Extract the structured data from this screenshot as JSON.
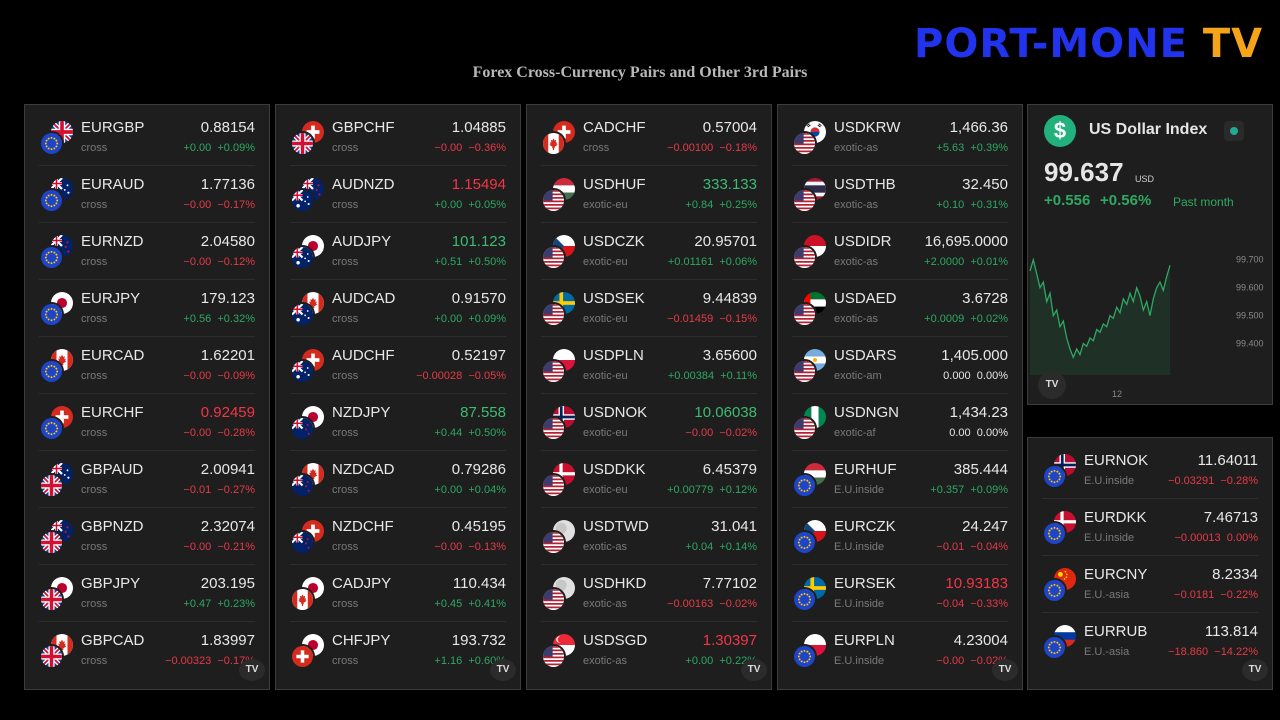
{
  "brand": {
    "part1": "PORT-MONE",
    "part2": "TV"
  },
  "title": "Forex Cross-Currency Pairs and Other 3rd Pairs",
  "tv_mark": "TV",
  "colors": {
    "up": "#2ea863",
    "down": "#e63a47",
    "panel_bg": "#1e1e1e",
    "accent_green": "#22b07d"
  },
  "panels": [
    [
      {
        "symbol": "EURGBP",
        "type": "cross",
        "price": "0.88154",
        "price_dir": "nt",
        "change": "+0.00",
        "pct": "+0.09%",
        "dir": "up",
        "base": "EU",
        "quote": "GB"
      },
      {
        "symbol": "EURAUD",
        "type": "cross",
        "price": "1.77136",
        "price_dir": "nt",
        "change": "−0.00",
        "pct": "−0.17%",
        "dir": "dn",
        "base": "EU",
        "quote": "AU"
      },
      {
        "symbol": "EURNZD",
        "type": "cross",
        "price": "2.04580",
        "price_dir": "nt",
        "change": "−0.00",
        "pct": "−0.12%",
        "dir": "dn",
        "base": "EU",
        "quote": "NZ"
      },
      {
        "symbol": "EURJPY",
        "type": "cross",
        "price": "179.123",
        "price_dir": "nt",
        "change": "+0.56",
        "pct": "+0.32%",
        "dir": "up",
        "base": "EU",
        "quote": "JP"
      },
      {
        "symbol": "EURCAD",
        "type": "cross",
        "price": "1.62201",
        "price_dir": "nt",
        "change": "−0.00",
        "pct": "−0.09%",
        "dir": "dn",
        "base": "EU",
        "quote": "CA"
      },
      {
        "symbol": "EURCHF",
        "type": "cross",
        "price": "0.92459",
        "price_dir": "dn",
        "change": "−0.00",
        "pct": "−0.28%",
        "dir": "dn",
        "base": "EU",
        "quote": "CH"
      },
      {
        "symbol": "GBPAUD",
        "type": "cross",
        "price": "2.00941",
        "price_dir": "nt",
        "change": "−0.01",
        "pct": "−0.27%",
        "dir": "dn",
        "base": "GB",
        "quote": "AU"
      },
      {
        "symbol": "GBPNZD",
        "type": "cross",
        "price": "2.32074",
        "price_dir": "nt",
        "change": "−0.00",
        "pct": "−0.21%",
        "dir": "dn",
        "base": "GB",
        "quote": "NZ"
      },
      {
        "symbol": "GBPJPY",
        "type": "cross",
        "price": "203.195",
        "price_dir": "nt",
        "change": "+0.47",
        "pct": "+0.23%",
        "dir": "up",
        "base": "GB",
        "quote": "JP"
      },
      {
        "symbol": "GBPCAD",
        "type": "cross",
        "price": "1.83997",
        "price_dir": "nt",
        "change": "−0.00323",
        "pct": "−0.17%",
        "dir": "dn",
        "base": "GB",
        "quote": "CA"
      }
    ],
    [
      {
        "symbol": "GBPCHF",
        "type": "cross",
        "price": "1.04885",
        "price_dir": "nt",
        "change": "−0.00",
        "pct": "−0.36%",
        "dir": "dn",
        "base": "GB",
        "quote": "CH"
      },
      {
        "symbol": "AUDNZD",
        "type": "cross",
        "price": "1.15494",
        "price_dir": "dn",
        "change": "+0.00",
        "pct": "+0.05%",
        "dir": "up",
        "base": "AU",
        "quote": "NZ"
      },
      {
        "symbol": "AUDJPY",
        "type": "cross",
        "price": "101.123",
        "price_dir": "up",
        "change": "+0.51",
        "pct": "+0.50%",
        "dir": "up",
        "base": "AU",
        "quote": "JP"
      },
      {
        "symbol": "AUDCAD",
        "type": "cross",
        "price": "0.91570",
        "price_dir": "nt",
        "change": "+0.00",
        "pct": "+0.09%",
        "dir": "up",
        "base": "AU",
        "quote": "CA"
      },
      {
        "symbol": "AUDCHF",
        "type": "cross",
        "price": "0.52197",
        "price_dir": "nt",
        "change": "−0.00028",
        "pct": "−0.05%",
        "dir": "dn",
        "base": "AU",
        "quote": "CH"
      },
      {
        "symbol": "NZDJPY",
        "type": "cross",
        "price": "87.558",
        "price_dir": "up",
        "change": "+0.44",
        "pct": "+0.50%",
        "dir": "up",
        "base": "NZ",
        "quote": "JP"
      },
      {
        "symbol": "NZDCAD",
        "type": "cross",
        "price": "0.79286",
        "price_dir": "nt",
        "change": "+0.00",
        "pct": "+0.04%",
        "dir": "up",
        "base": "NZ",
        "quote": "CA"
      },
      {
        "symbol": "NZDCHF",
        "type": "cross",
        "price": "0.45195",
        "price_dir": "nt",
        "change": "−0.00",
        "pct": "−0.13%",
        "dir": "dn",
        "base": "NZ",
        "quote": "CH"
      },
      {
        "symbol": "CADJPY",
        "type": "cross",
        "price": "110.434",
        "price_dir": "nt",
        "change": "+0.45",
        "pct": "+0.41%",
        "dir": "up",
        "base": "CA",
        "quote": "JP"
      },
      {
        "symbol": "CHFJPY",
        "type": "cross",
        "price": "193.732",
        "price_dir": "nt",
        "change": "+1.16",
        "pct": "+0.60%",
        "dir": "up",
        "base": "CH",
        "quote": "JP"
      }
    ],
    [
      {
        "symbol": "CADCHF",
        "type": "cross",
        "price": "0.57004",
        "price_dir": "nt",
        "change": "−0.00100",
        "pct": "−0.18%",
        "dir": "dn",
        "base": "CA",
        "quote": "CH"
      },
      {
        "symbol": "USDHUF",
        "type": "exotic-eu",
        "price": "333.133",
        "price_dir": "up",
        "change": "+0.84",
        "pct": "+0.25%",
        "dir": "up",
        "base": "US",
        "quote": "HU"
      },
      {
        "symbol": "USDCZK",
        "type": "exotic-eu",
        "price": "20.95701",
        "price_dir": "nt",
        "change": "+0.01161",
        "pct": "+0.06%",
        "dir": "up",
        "base": "US",
        "quote": "CZ"
      },
      {
        "symbol": "USDSEK",
        "type": "exotic-eu",
        "price": "9.44839",
        "price_dir": "nt",
        "change": "−0.01459",
        "pct": "−0.15%",
        "dir": "dn",
        "base": "US",
        "quote": "SE"
      },
      {
        "symbol": "USDPLN",
        "type": "exotic-eu",
        "price": "3.65600",
        "price_dir": "nt",
        "change": "+0.00384",
        "pct": "+0.11%",
        "dir": "up",
        "base": "US",
        "quote": "PL"
      },
      {
        "symbol": "USDNOK",
        "type": "exotic-eu",
        "price": "10.06038",
        "price_dir": "up",
        "change": "−0.00",
        "pct": "−0.02%",
        "dir": "dn",
        "base": "US",
        "quote": "NO"
      },
      {
        "symbol": "USDDKK",
        "type": "exotic-eu",
        "price": "6.45379",
        "price_dir": "nt",
        "change": "+0.00779",
        "pct": "+0.12%",
        "dir": "up",
        "base": "US",
        "quote": "DK"
      },
      {
        "symbol": "USDTWD",
        "type": "exotic-as",
        "price": "31.041",
        "price_dir": "nt",
        "change": "+0.04",
        "pct": "+0.14%",
        "dir": "up",
        "base": "US",
        "quote": "GRAY"
      },
      {
        "symbol": "USDHKD",
        "type": "exotic-as",
        "price": "7.77102",
        "price_dir": "nt",
        "change": "−0.00163",
        "pct": "−0.02%",
        "dir": "dn",
        "base": "US",
        "quote": "GRAY"
      },
      {
        "symbol": "USDSGD",
        "type": "exotic-as",
        "price": "1.30397",
        "price_dir": "dn",
        "change": "+0.00",
        "pct": "+0.22%",
        "dir": "up",
        "base": "US",
        "quote": "SG"
      }
    ],
    [
      {
        "symbol": "USDKRW",
        "type": "exotic-as",
        "price": "1,466.36",
        "price_dir": "nt",
        "change": "+5.63",
        "pct": "+0.39%",
        "dir": "up",
        "base": "US",
        "quote": "KR"
      },
      {
        "symbol": "USDTHB",
        "type": "exotic-as",
        "price": "32.450",
        "price_dir": "nt",
        "change": "+0.10",
        "pct": "+0.31%",
        "dir": "up",
        "base": "US",
        "quote": "TH"
      },
      {
        "symbol": "USDIDR",
        "type": "exotic-as",
        "price": "16,695.0000",
        "price_dir": "nt",
        "change": "+2.0000",
        "pct": "+0.01%",
        "dir": "up",
        "base": "US",
        "quote": "ID"
      },
      {
        "symbol": "USDAED",
        "type": "exotic-as",
        "price": "3.6728",
        "price_dir": "nt",
        "change": "+0.0009",
        "pct": "+0.02%",
        "dir": "up",
        "base": "US",
        "quote": "AE"
      },
      {
        "symbol": "USDARS",
        "type": "exotic-am",
        "price": "1,405.000",
        "price_dir": "nt",
        "change": "0.000",
        "pct": "0.00%",
        "dir": "nt",
        "base": "US",
        "quote": "AR"
      },
      {
        "symbol": "USDNGN",
        "type": "exotic-af",
        "price": "1,434.23",
        "price_dir": "nt",
        "change": "0.00",
        "pct": "0.00%",
        "dir": "nt",
        "base": "US",
        "quote": "NG"
      },
      {
        "symbol": "EURHUF",
        "type": "E.U.inside",
        "price": "385.444",
        "price_dir": "nt",
        "change": "+0.357",
        "pct": "+0.09%",
        "dir": "up",
        "base": "EU",
        "quote": "HU"
      },
      {
        "symbol": "EURCZK",
        "type": "E.U.inside",
        "price": "24.247",
        "price_dir": "nt",
        "change": "−0.01",
        "pct": "−0.04%",
        "dir": "dn",
        "base": "EU",
        "quote": "CZ"
      },
      {
        "symbol": "EURSEK",
        "type": "E.U.inside",
        "price": "10.93183",
        "price_dir": "dn",
        "change": "−0.04",
        "pct": "−0.33%",
        "dir": "dn",
        "base": "EU",
        "quote": "SE"
      },
      {
        "symbol": "EURPLN",
        "type": "E.U.inside",
        "price": "4.23004",
        "price_dir": "nt",
        "change": "−0.00",
        "pct": "−0.02%",
        "dir": "dn",
        "base": "EU",
        "quote": "PL"
      }
    ]
  ],
  "small_panel": [
    {
      "symbol": "EURNOK",
      "type": "E.U.inside",
      "price": "11.64011",
      "price_dir": "nt",
      "change": "−0.03291",
      "pct": "−0.28%",
      "dir": "dn",
      "base": "EU",
      "quote": "NO"
    },
    {
      "symbol": "EURDKK",
      "type": "E.U.inside",
      "price": "7.46713",
      "price_dir": "nt",
      "change": "−0.00013",
      "pct": "0.00%",
      "dir": "dn",
      "base": "EU",
      "quote": "DK"
    },
    {
      "symbol": "EURCNY",
      "type": "E.U.-asia",
      "price": "8.2334",
      "price_dir": "nt",
      "change": "−0.0181",
      "pct": "−0.22%",
      "dir": "dn",
      "base": "EU",
      "quote": "CN"
    },
    {
      "symbol": "EURRUB",
      "type": "E.U.-asia",
      "price": "113.814",
      "price_dir": "nt",
      "change": "−18.860",
      "pct": "−14.22%",
      "dir": "dn",
      "base": "EU",
      "quote": "RU"
    }
  ],
  "usd_index": {
    "icon": "dollar-icon",
    "badge_glyph": "$",
    "name": "US Dollar Index",
    "value": "99.637",
    "currency": "USD",
    "change": "+0.556",
    "change_pct": "+0.56%",
    "period": "Past month",
    "chart_data": {
      "type": "line",
      "series": [
        {
          "values": [
            99.66,
            99.7,
            99.65,
            99.6,
            99.62,
            99.55,
            99.58,
            99.5,
            99.52,
            99.46,
            99.48,
            99.42,
            99.38,
            99.35,
            99.38,
            99.36,
            99.4,
            99.39,
            99.42,
            99.41,
            99.45,
            99.44,
            99.47,
            99.46,
            99.5,
            99.49,
            99.53,
            99.51,
            99.56,
            99.54,
            99.58,
            99.55,
            99.6,
            99.57,
            99.52,
            99.55,
            99.5,
            99.56,
            99.6,
            99.62,
            99.59,
            99.64,
            99.68
          ]
        }
      ],
      "ylim": [
        99.33,
        99.76
      ],
      "yticks": [
        "99.700",
        "99.600",
        "99.500",
        "99.400"
      ],
      "xticks": [
        "12"
      ],
      "color": "#2ea863"
    }
  }
}
